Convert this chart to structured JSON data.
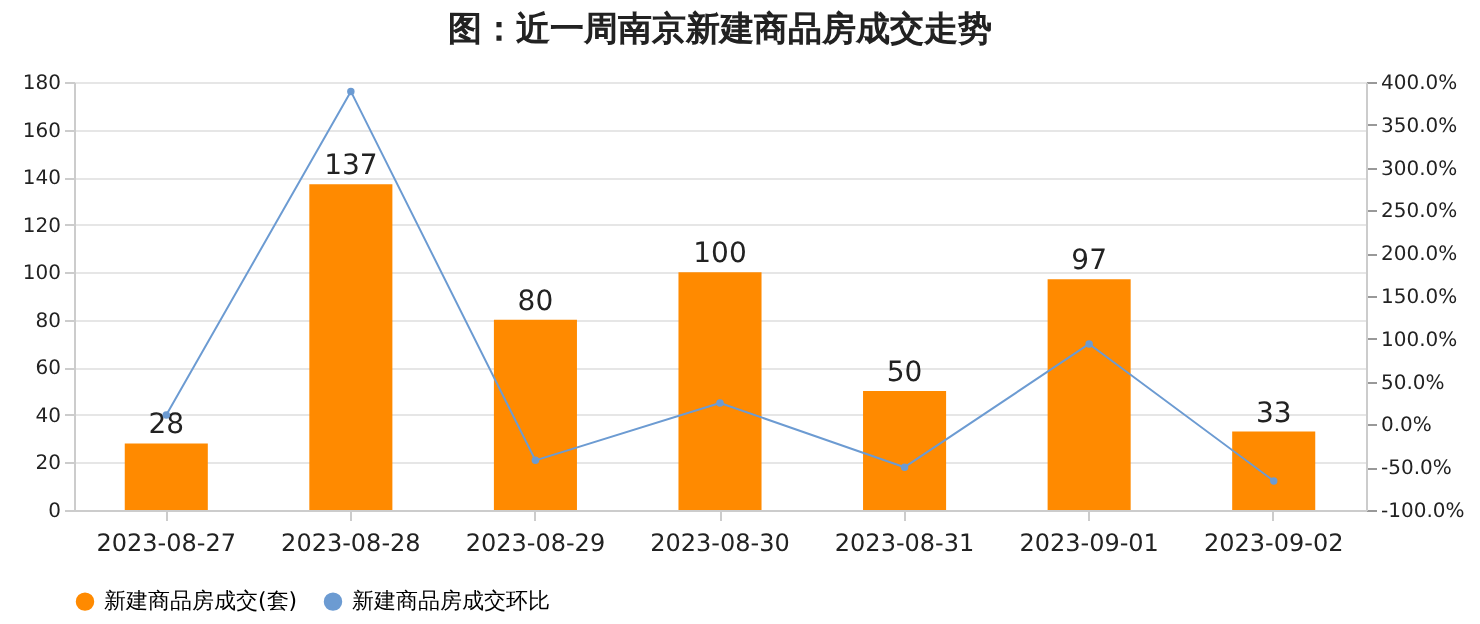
{
  "chart_data": {
    "type": "bar",
    "title": "图：近一周南京新建商品房成交走势",
    "categories": [
      "2023-08-27",
      "2023-08-28",
      "2023-08-29",
      "2023-08-30",
      "2023-08-31",
      "2023-09-01",
      "2023-09-02"
    ],
    "series": [
      {
        "name": "新建商品房成交(套)",
        "color": "#ff8a00",
        "values": [
          28,
          137,
          80,
          100,
          50,
          97,
          33
        ],
        "value_labels": [
          "28",
          "137",
          "80",
          "100",
          "50",
          "97",
          "33"
        ]
      },
      {
        "name": "新建商品房成交环比",
        "type": "line",
        "axis": "y2",
        "color": "#6c9bd2",
        "marker": "circle",
        "values": [
          11,
          389,
          -42,
          25,
          -50,
          94,
          -66
        ]
      }
    ],
    "ylim": [
      0,
      180
    ],
    "yticks": [
      0,
      20,
      40,
      60,
      80,
      100,
      120,
      140,
      160,
      180
    ],
    "y2lim": [
      -100,
      400
    ],
    "y2ticks": [
      {
        "value": -100,
        "label": "-100.0%"
      },
      {
        "value": -50,
        "label": "-50.0%"
      },
      {
        "value": 0,
        "label": "0.0%"
      },
      {
        "value": 50,
        "label": "50.0%"
      },
      {
        "value": 100,
        "label": "100.0%"
      },
      {
        "value": 150,
        "label": "150.0%"
      },
      {
        "value": 200,
        "label": "200.0%"
      },
      {
        "value": 250,
        "label": "250.0%"
      },
      {
        "value": 300,
        "label": "300.0%"
      },
      {
        "value": 350,
        "label": "350.0%"
      },
      {
        "value": 400,
        "label": "400.0%"
      }
    ],
    "grid": "y",
    "legend": "bottom"
  }
}
